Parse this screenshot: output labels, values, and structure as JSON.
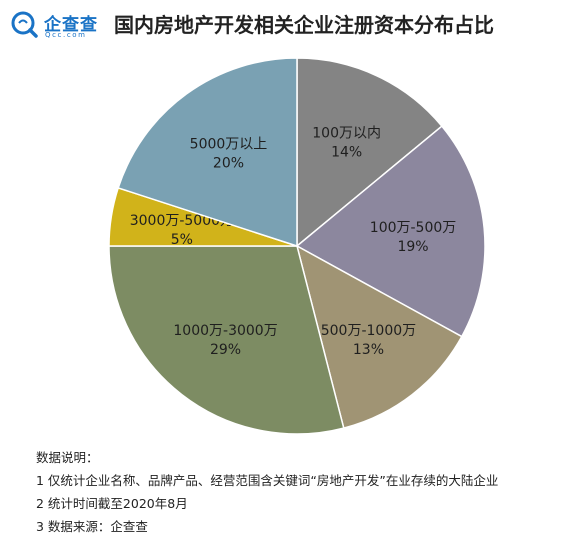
{
  "header": {
    "logo_name": "企查查",
    "logo_url": "Qcc.com",
    "title": "国内房地产开发相关企业注册资本分布占比"
  },
  "chart_data": {
    "type": "pie",
    "start_angle_deg": 0,
    "direction": "clockwise",
    "slices": [
      {
        "label": "100万以内",
        "value": 14,
        "pct_label": "14%",
        "color": "#848484"
      },
      {
        "label": "100万-500万",
        "value": 19,
        "pct_label": "19%",
        "color": "#8c879e"
      },
      {
        "label": "500万-1000万",
        "value": 13,
        "pct_label": "13%",
        "color": "#a09474"
      },
      {
        "label": "1000万-3000万",
        "value": 29,
        "pct_label": "29%",
        "color": "#7d8c63"
      },
      {
        "label": "3000万-5000万",
        "value": 5,
        "pct_label": "5%",
        "color": "#d1b31a"
      },
      {
        "label": "5000万以上",
        "value": 20,
        "pct_label": "20%",
        "color": "#7aa1b3"
      }
    ]
  },
  "notes": {
    "heading": "数据说明：",
    "lines": [
      "1 仅统计企业名称、品牌产品、经营范围含关键词“房地产开发”在业存续的大陆企业",
      "2 统计时间截至2020年8月",
      "3 数据来源：企查查"
    ]
  }
}
